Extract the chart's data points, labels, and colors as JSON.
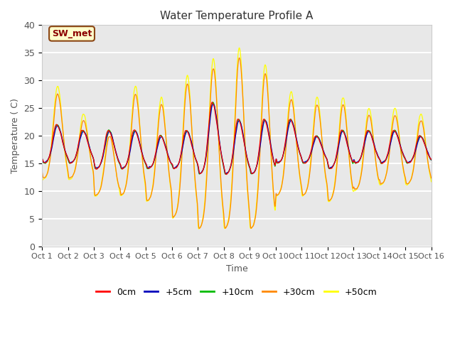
{
  "title": "Water Temperature Profile A",
  "xlabel": "Time",
  "ylabel": "Temperature ( C)",
  "ylim": [
    0,
    40
  ],
  "xlim": [
    0,
    15
  ],
  "plot_bg_color": "#e8e8e8",
  "grid_color": "white",
  "series_colors": [
    "#ff0000",
    "#0000bb",
    "#00bb00",
    "#ff8800",
    "#ffff00"
  ],
  "series_labels": [
    "0cm",
    "+5cm",
    "+10cm",
    "+30cm",
    "+50cm"
  ],
  "xtick_labels": [
    "Oct 1",
    "Oct 2",
    "Oct 3",
    "Oct 4",
    "Oct 5",
    "Oct 6",
    "Oct 7",
    "Oct 8",
    "Oct 9",
    "Oct 10",
    "Oct 11",
    "Oct 12",
    "Oct 13",
    "Oct 14",
    "Oct 15",
    "Oct 16"
  ],
  "ytick_values": [
    0,
    5,
    10,
    15,
    20,
    25,
    30,
    35,
    40
  ],
  "annotation_text": "SW_met",
  "annotation_color": "#8b0000",
  "annotation_bg": "#ffffcc",
  "annotation_border": "#8b4513",
  "title_fontsize": 11,
  "tick_fontsize": 8,
  "label_fontsize": 9
}
